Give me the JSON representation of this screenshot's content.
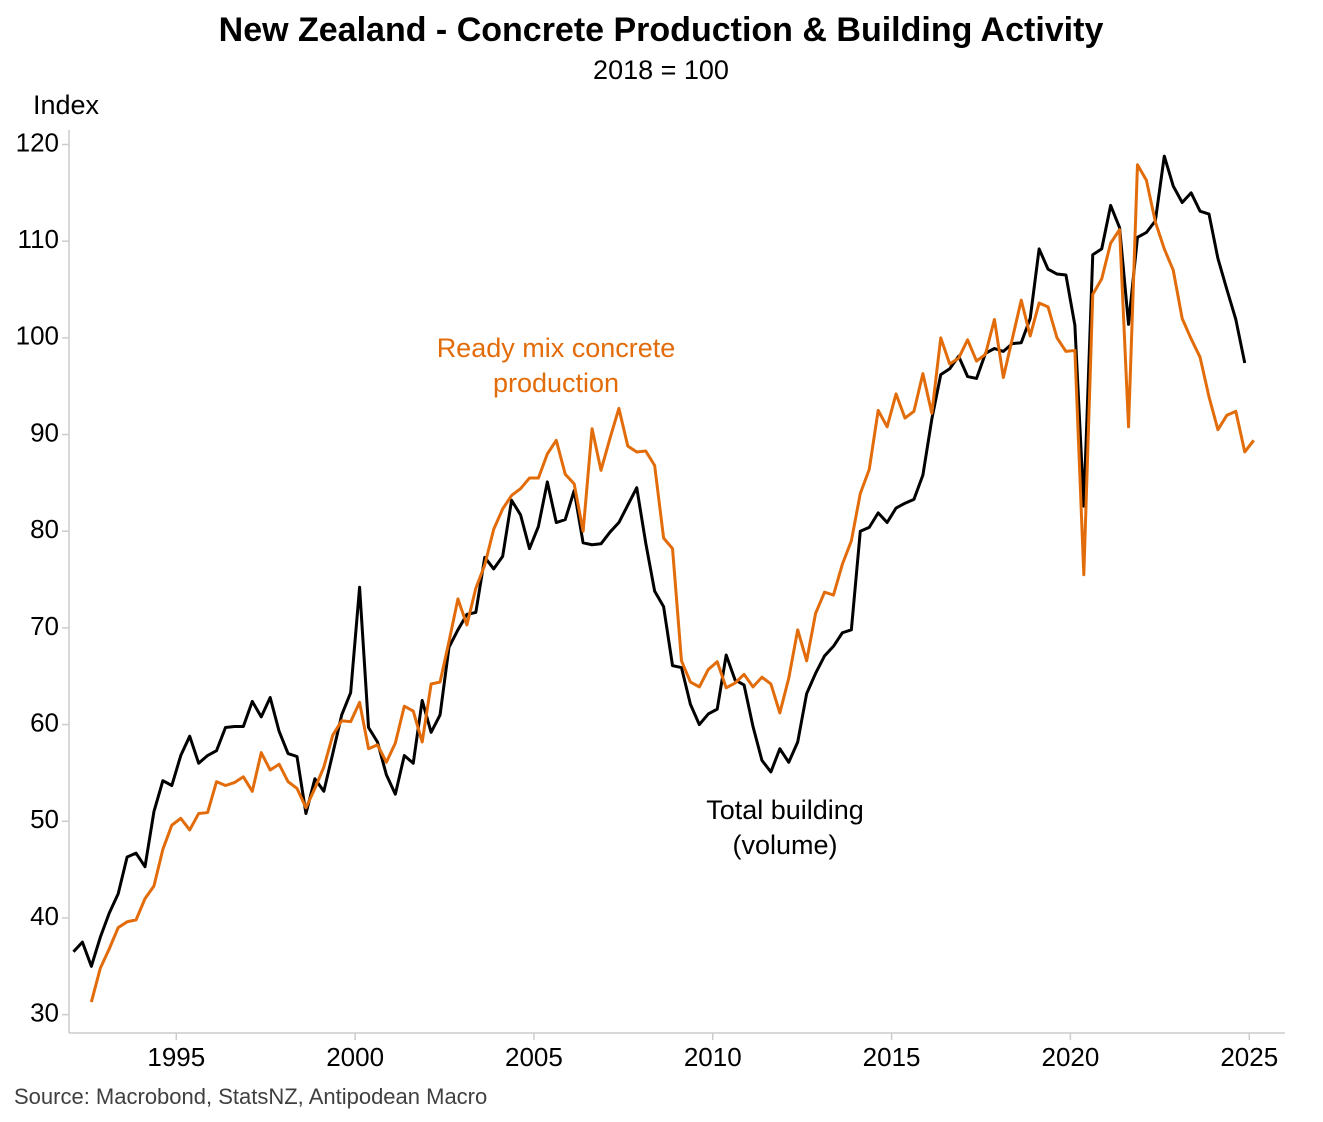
{
  "chart_data": {
    "type": "line",
    "title": "New Zealand - Concrete Production & Building Activity",
    "subtitle": "2018 = 100",
    "y_label": "Index",
    "source": "Source: Macrobond, StatsNZ, Antipodean Macro",
    "annotations": [
      {
        "lines": [
          "Ready mix concrete",
          "production"
        ],
        "color": "#e36c0a"
      },
      {
        "lines": [
          "Total building",
          "(volume)"
        ],
        "color": "#000000"
      }
    ],
    "xlim": [
      1992,
      2026
    ],
    "xticks": [
      1995,
      2000,
      2005,
      2010,
      2015,
      2020,
      2025
    ],
    "ylim": [
      28.1,
      121.5
    ],
    "yticks": [
      30,
      40,
      50,
      60,
      70,
      80,
      90,
      100,
      110,
      120
    ],
    "x": [
      1992.125,
      1992.375,
      1992.625,
      1992.875,
      1993.125,
      1993.375,
      1993.625,
      1993.875,
      1994.125,
      1994.375,
      1994.625,
      1994.875,
      1995.125,
      1995.375,
      1995.625,
      1995.875,
      1996.125,
      1996.375,
      1996.625,
      1996.875,
      1997.125,
      1997.375,
      1997.625,
      1997.875,
      1998.125,
      1998.375,
      1998.625,
      1998.875,
      1999.125,
      1999.375,
      1999.625,
      1999.875,
      2000.125,
      2000.375,
      2000.625,
      2000.875,
      2001.125,
      2001.375,
      2001.625,
      2001.875,
      2002.125,
      2002.375,
      2002.625,
      2002.875,
      2003.125,
      2003.375,
      2003.625,
      2003.875,
      2004.125,
      2004.375,
      2004.625,
      2004.875,
      2005.125,
      2005.375,
      2005.625,
      2005.875,
      2006.125,
      2006.375,
      2006.625,
      2006.875,
      2007.125,
      2007.375,
      2007.625,
      2007.875,
      2008.125,
      2008.375,
      2008.625,
      2008.875,
      2009.125,
      2009.375,
      2009.625,
      2009.875,
      2010.125,
      2010.375,
      2010.625,
      2010.875,
      2011.125,
      2011.375,
      2011.625,
      2011.875,
      2012.125,
      2012.375,
      2012.625,
      2012.875,
      2013.125,
      2013.375,
      2013.625,
      2013.875,
      2014.125,
      2014.375,
      2014.625,
      2014.875,
      2015.125,
      2015.375,
      2015.625,
      2015.875,
      2016.125,
      2016.375,
      2016.625,
      2016.875,
      2017.125,
      2017.375,
      2017.625,
      2017.875,
      2018.125,
      2018.375,
      2018.625,
      2018.875,
      2019.125,
      2019.375,
      2019.625,
      2019.875,
      2020.125,
      2020.375,
      2020.625,
      2020.875,
      2021.125,
      2021.375,
      2021.625,
      2021.875,
      2022.125,
      2022.375,
      2022.625,
      2022.875,
      2023.125,
      2023.375,
      2023.625,
      2023.875,
      2024.125,
      2024.375,
      2024.625,
      2024.875,
      2025.125
    ],
    "series": [
      {
        "color": "#000000",
        "values": [
          36.5,
          37.5,
          35,
          38,
          40.5,
          42.5,
          46.3,
          46.7,
          45.3,
          51,
          54.2,
          53.7,
          56.8,
          58.8,
          56,
          56.8,
          57.3,
          59.7,
          59.8,
          59.8,
          62.4,
          60.8,
          62.8,
          59.3,
          57,
          56.7,
          50.8,
          54.4,
          53.1,
          57,
          61,
          63.3,
          74.2,
          59.7,
          58.2,
          54.8,
          52.8,
          56.8,
          56,
          62.5,
          59.2,
          61,
          68,
          69.8,
          71.4,
          71.6,
          77.3,
          76.1,
          77.4,
          83.2,
          81.7,
          78.2,
          80.5,
          85.1,
          80.9,
          81.2,
          84.2,
          78.8,
          78.6,
          78.7,
          79.9,
          80.9,
          82.7,
          84.5,
          78.8,
          73.8,
          72.2,
          66.1,
          65.9,
          62.1,
          60,
          61.1,
          61.6,
          67.2,
          64.6,
          64.1,
          59.8,
          56.3,
          55.1,
          57.5,
          56.1,
          58.2,
          63.2,
          65.3,
          67.1,
          68.1,
          69.5,
          69.8,
          80,
          80.4,
          81.9,
          80.9,
          82.4,
          82.9,
          83.3,
          85.8,
          91.6,
          96.2,
          96.8,
          98.1,
          96,
          95.8,
          98.4,
          98.9,
          98.6,
          99.4,
          99.5,
          102,
          109.2,
          107.1,
          106.6,
          106.5,
          101.3,
          82.6,
          108.6,
          109.2,
          113.7,
          111.4,
          101.4,
          110.4,
          110.9,
          112.1,
          118.8,
          115.7,
          114,
          115,
          113.1,
          112.8,
          108.2,
          105,
          101.9,
          97.4,
          null
        ]
      },
      {
        "color": "#e36c0a",
        "values": [
          null,
          null,
          31.3,
          34.8,
          36.8,
          39,
          39.6,
          39.8,
          42,
          43.3,
          47.1,
          49.6,
          50.3,
          49.1,
          50.8,
          50.9,
          54.1,
          53.7,
          54,
          54.6,
          53.1,
          57.1,
          55.3,
          55.9,
          54.1,
          53.4,
          51.4,
          53.4,
          55.6,
          58.9,
          60.4,
          60.3,
          62.3,
          57.5,
          57.9,
          56.1,
          58.1,
          61.9,
          61.4,
          58.2,
          64.2,
          64.4,
          68.6,
          73,
          70.3,
          74.1,
          76.5,
          80.2,
          82.3,
          83.7,
          84.4,
          85.5,
          85.5,
          88,
          89.4,
          85.9,
          84.9,
          80,
          90.6,
          86.3,
          89.6,
          92.7,
          88.8,
          88.2,
          88.3,
          86.8,
          79.3,
          78.2,
          66.6,
          64.4,
          63.9,
          65.7,
          66.5,
          63.8,
          64.3,
          65.2,
          63.9,
          64.9,
          64.2,
          61.2,
          64.8,
          69.8,
          66.6,
          71.5,
          73.7,
          73.4,
          76.6,
          79,
          83.9,
          86.4,
          92.5,
          90.8,
          94.2,
          91.7,
          92.4,
          96.3,
          92.2,
          100,
          97.3,
          97.9,
          99.8,
          97.6,
          98.3,
          101.9,
          95.9,
          99.9,
          103.9,
          100.2,
          103.6,
          103.2,
          100,
          98.6,
          98.7,
          75.5,
          104.5,
          106.1,
          109.8,
          111.2,
          90.8,
          117.9,
          116.3,
          112,
          109.2,
          107,
          102,
          99.9,
          98,
          93.9,
          90.5,
          92,
          92.4,
          88.2,
          89.4
        ]
      }
    ]
  }
}
